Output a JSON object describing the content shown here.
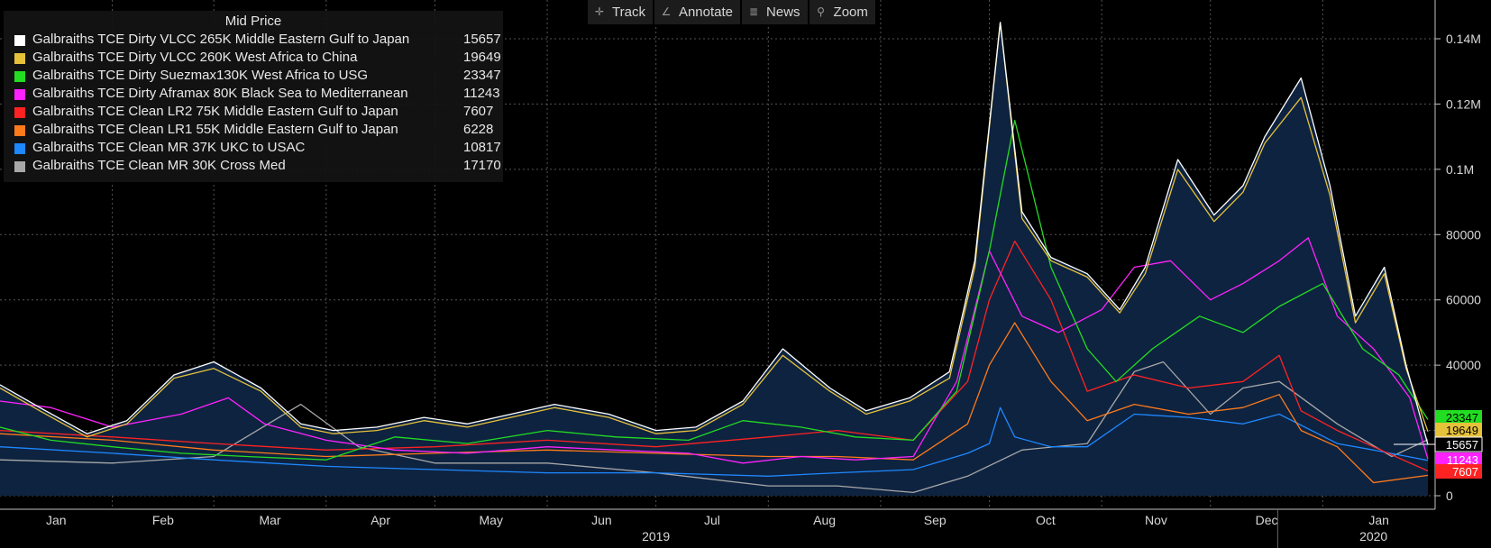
{
  "toolbar": {
    "track_label": "Track",
    "annotate_label": "Annotate",
    "news_label": "News",
    "zoom_label": "Zoom"
  },
  "legend_title": "Mid Price",
  "chart_data": {
    "type": "line",
    "title": "Mid Price",
    "x_ticks": [
      "Jan",
      "Feb",
      "Mar",
      "Apr",
      "May",
      "Jun",
      "Jul",
      "Aug",
      "Sep",
      "Oct",
      "Nov",
      "Dec",
      "Jan"
    ],
    "x_years": [
      "2019",
      "2020"
    ],
    "y_ticks": [
      "0",
      "20000",
      "40000",
      "60000",
      "80000",
      "0.1M",
      "0.12M",
      "0.14M"
    ],
    "ylim": [
      0,
      145000
    ],
    "x_domain": [
      "2019-01-01",
      "2020-02-01"
    ],
    "grid": true,
    "filled_series": "Galbraiths TCE Dirty VLCC 265K Middle Eastern Gulf to Japan",
    "series": [
      {
        "name": "Galbraiths TCE Dirty VLCC 265K Middle Eastern Gulf to Japan",
        "color": "#ffffff",
        "last": "15657",
        "x": [
          "2019-01-01",
          "2019-01-12",
          "2019-01-25",
          "2019-02-05",
          "2019-02-18",
          "2019-03-01",
          "2019-03-14",
          "2019-03-25",
          "2019-04-03",
          "2019-04-15",
          "2019-04-28",
          "2019-05-10",
          "2019-05-22",
          "2019-06-03",
          "2019-06-18",
          "2019-07-01",
          "2019-07-12",
          "2019-07-25",
          "2019-08-05",
          "2019-08-18",
          "2019-08-28",
          "2019-09-09",
          "2019-09-20",
          "2019-09-27",
          "2019-10-04",
          "2019-10-10",
          "2019-10-18",
          "2019-10-28",
          "2019-11-06",
          "2019-11-13",
          "2019-11-22",
          "2019-12-02",
          "2019-12-10",
          "2019-12-16",
          "2019-12-26",
          "2020-01-03",
          "2020-01-10",
          "2020-01-18",
          "2020-01-24",
          "2020-01-30"
        ],
        "y": [
          34000,
          27000,
          19000,
          23000,
          37000,
          41000,
          33000,
          22000,
          20000,
          21000,
          24000,
          22000,
          25000,
          28000,
          25000,
          20000,
          21000,
          29000,
          45000,
          33000,
          26000,
          30000,
          38000,
          72000,
          160000,
          87000,
          73000,
          68000,
          57000,
          70000,
          103000,
          86000,
          95000,
          110000,
          128000,
          95000,
          55000,
          70000,
          40000,
          15657
        ]
      },
      {
        "name": "Galbraiths TCE Dirty VLCC 260K West Africa to China",
        "color": "#e6c13a",
        "last": "19649",
        "x": [
          "2019-01-01",
          "2019-01-12",
          "2019-01-25",
          "2019-02-05",
          "2019-02-18",
          "2019-03-01",
          "2019-03-14",
          "2019-03-25",
          "2019-04-03",
          "2019-04-15",
          "2019-04-28",
          "2019-05-10",
          "2019-05-22",
          "2019-06-03",
          "2019-06-18",
          "2019-07-01",
          "2019-07-12",
          "2019-07-25",
          "2019-08-05",
          "2019-08-18",
          "2019-08-28",
          "2019-09-09",
          "2019-09-20",
          "2019-09-27",
          "2019-10-04",
          "2019-10-10",
          "2019-10-18",
          "2019-10-28",
          "2019-11-06",
          "2019-11-13",
          "2019-11-22",
          "2019-12-02",
          "2019-12-10",
          "2019-12-16",
          "2019-12-26",
          "2020-01-03",
          "2020-01-10",
          "2020-01-18",
          "2020-01-24",
          "2020-01-30"
        ],
        "y": [
          33000,
          26000,
          18000,
          22000,
          36000,
          39000,
          32000,
          21000,
          19000,
          20000,
          23000,
          21000,
          24000,
          27000,
          24000,
          19000,
          20000,
          28000,
          43000,
          32000,
          25000,
          29000,
          36000,
          70000,
          155000,
          85000,
          72000,
          67000,
          56000,
          68000,
          100000,
          84000,
          93000,
          108000,
          122000,
          92000,
          53000,
          68000,
          39000,
          19649
        ]
      },
      {
        "name": "Galbraiths TCE Dirty Suezmax130K West Africa to USG",
        "color": "#22dd22",
        "last": "23347",
        "x": [
          "2019-01-01",
          "2019-01-15",
          "2019-02-01",
          "2019-02-20",
          "2019-03-10",
          "2019-04-01",
          "2019-04-20",
          "2019-05-10",
          "2019-06-01",
          "2019-06-20",
          "2019-07-10",
          "2019-07-25",
          "2019-08-10",
          "2019-08-25",
          "2019-09-10",
          "2019-09-22",
          "2019-10-01",
          "2019-10-08",
          "2019-10-18",
          "2019-10-28",
          "2019-11-05",
          "2019-11-15",
          "2019-11-28",
          "2019-12-10",
          "2019-12-20",
          "2020-01-01",
          "2020-01-12",
          "2020-01-22",
          "2020-01-30"
        ],
        "y": [
          21000,
          17000,
          15000,
          13000,
          12000,
          11000,
          18000,
          16000,
          20000,
          18000,
          17000,
          23000,
          21000,
          18000,
          17000,
          32000,
          75000,
          115000,
          70000,
          45000,
          35000,
          45000,
          55000,
          50000,
          58000,
          65000,
          45000,
          37000,
          23347
        ]
      },
      {
        "name": "Galbraiths TCE Dirty Aframax 80K Black Sea to Mediterranean",
        "color": "#ff22ff",
        "last": "11243",
        "x": [
          "2019-01-01",
          "2019-01-15",
          "2019-02-01",
          "2019-02-20",
          "2019-03-05",
          "2019-03-15",
          "2019-04-01",
          "2019-04-20",
          "2019-05-10",
          "2019-06-01",
          "2019-06-20",
          "2019-07-10",
          "2019-07-25",
          "2019-08-10",
          "2019-08-25",
          "2019-09-10",
          "2019-09-22",
          "2019-10-01",
          "2019-10-10",
          "2019-10-20",
          "2019-11-01",
          "2019-11-10",
          "2019-11-20",
          "2019-12-01",
          "2019-12-10",
          "2019-12-20",
          "2019-12-28",
          "2020-01-05",
          "2020-01-15",
          "2020-01-25",
          "2020-01-30"
        ],
        "y": [
          29000,
          27000,
          21000,
          25000,
          30000,
          22000,
          17000,
          14000,
          13000,
          15000,
          14000,
          13000,
          10000,
          12000,
          11000,
          12000,
          35000,
          75000,
          55000,
          50000,
          57000,
          70000,
          72000,
          60000,
          65000,
          72000,
          79000,
          55000,
          45000,
          30000,
          11243
        ]
      },
      {
        "name": "Galbraiths TCE Clean LR2 75K Middle Eastern Gulf to Japan",
        "color": "#ff2222",
        "last": "7607",
        "x": [
          "2019-01-01",
          "2019-02-01",
          "2019-03-01",
          "2019-04-01",
          "2019-05-01",
          "2019-06-01",
          "2019-07-01",
          "2019-08-01",
          "2019-08-20",
          "2019-09-10",
          "2019-09-25",
          "2019-10-01",
          "2019-10-08",
          "2019-10-18",
          "2019-10-28",
          "2019-11-10",
          "2019-11-25",
          "2019-12-10",
          "2019-12-20",
          "2019-12-26",
          "2020-01-05",
          "2020-01-15",
          "2020-01-30"
        ],
        "y": [
          20000,
          18000,
          16000,
          14000,
          15000,
          17000,
          15000,
          18000,
          20000,
          17000,
          35000,
          60000,
          78000,
          60000,
          32000,
          37000,
          33000,
          35000,
          43000,
          26000,
          20000,
          15000,
          7607
        ]
      },
      {
        "name": "Galbraiths TCE Clean LR1 55K Middle Eastern Gulf to Japan",
        "color": "#ff7a1a",
        "last": "6228",
        "x": [
          "2019-01-01",
          "2019-02-01",
          "2019-03-01",
          "2019-04-01",
          "2019-05-01",
          "2019-06-01",
          "2019-07-01",
          "2019-08-01",
          "2019-08-20",
          "2019-09-10",
          "2019-09-25",
          "2019-10-01",
          "2019-10-08",
          "2019-10-18",
          "2019-10-28",
          "2019-11-10",
          "2019-11-25",
          "2019-12-10",
          "2019-12-20",
          "2019-12-26",
          "2020-01-05",
          "2020-01-15",
          "2020-01-30"
        ],
        "y": [
          19000,
          17000,
          14000,
          12000,
          13000,
          14000,
          13000,
          12000,
          12000,
          11000,
          22000,
          40000,
          53000,
          35000,
          23000,
          28000,
          25000,
          27000,
          31000,
          20000,
          15000,
          4000,
          6228
        ]
      },
      {
        "name": "Galbraiths TCE Clean MR 37K UKC to USAC",
        "color": "#1e88ff",
        "last": "10817",
        "x": [
          "2019-01-01",
          "2019-02-01",
          "2019-03-01",
          "2019-04-01",
          "2019-05-01",
          "2019-06-01",
          "2019-07-01",
          "2019-08-01",
          "2019-08-20",
          "2019-09-10",
          "2019-09-25",
          "2019-10-01",
          "2019-10-04",
          "2019-10-08",
          "2019-10-18",
          "2019-10-28",
          "2019-11-10",
          "2019-11-25",
          "2019-12-10",
          "2019-12-20",
          "2020-01-05",
          "2020-01-15",
          "2020-01-30"
        ],
        "y": [
          15000,
          13000,
          11000,
          9000,
          8000,
          7000,
          7000,
          6000,
          7000,
          8000,
          13000,
          16000,
          27000,
          18000,
          15000,
          15000,
          25000,
          24000,
          22000,
          25000,
          16000,
          14000,
          10817
        ]
      },
      {
        "name": "Galbraiths TCE Clean MR 30K Cross Med",
        "color": "#a8a8a8",
        "last": "17170",
        "x": [
          "2019-01-01",
          "2019-02-01",
          "2019-03-01",
          "2019-03-25",
          "2019-04-10",
          "2019-05-01",
          "2019-06-01",
          "2019-07-01",
          "2019-08-01",
          "2019-08-20",
          "2019-09-10",
          "2019-09-25",
          "2019-10-10",
          "2019-10-28",
          "2019-11-10",
          "2019-11-18",
          "2019-12-01",
          "2019-12-10",
          "2019-12-20",
          "2020-01-05",
          "2020-01-20",
          "2020-01-30"
        ],
        "y": [
          11000,
          10000,
          12000,
          28000,
          15000,
          10000,
          10000,
          7000,
          3000,
          3000,
          1000,
          6000,
          14000,
          16000,
          38000,
          41000,
          25000,
          33000,
          35000,
          22000,
          12000,
          17170
        ]
      }
    ]
  }
}
